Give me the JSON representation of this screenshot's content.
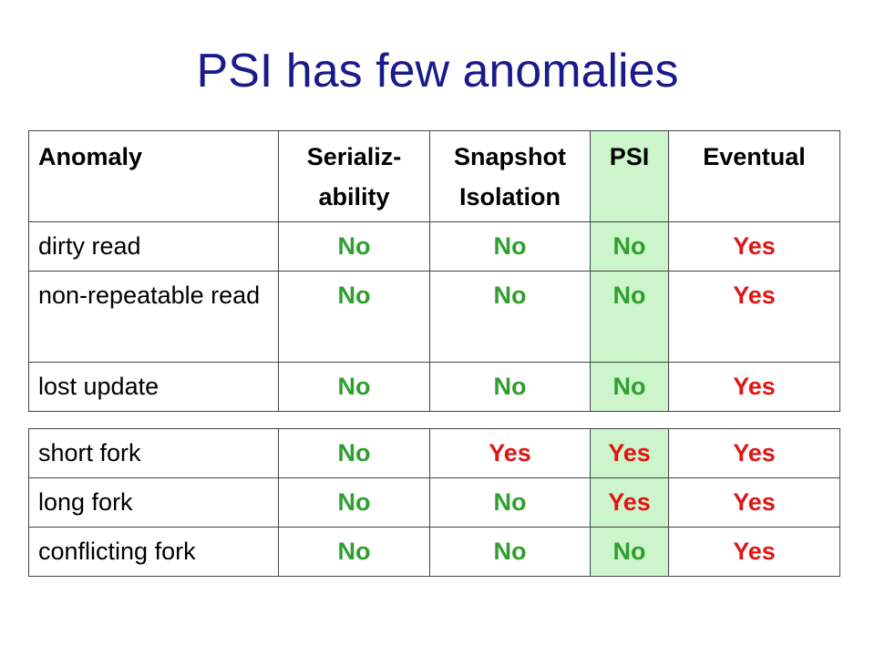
{
  "title": "PSI has few anomalies",
  "table_main": {
    "headers": [
      "Anomaly",
      "Serializ-ability",
      "Snapshot Isolation",
      "PSI",
      "Eventual"
    ],
    "header_lines": [
      [
        "Anomaly"
      ],
      [
        "Serializ-",
        "ability"
      ],
      [
        "Snapshot",
        "Isolation"
      ],
      [
        "PSI"
      ],
      [
        "Eventual"
      ]
    ],
    "rows": [
      {
        "anomaly": "dirty read",
        "serializability": "No",
        "snapshot": "No",
        "psi": "No",
        "eventual": "Yes"
      },
      {
        "anomaly": "non-repeatable read",
        "serializability": "No",
        "snapshot": "No",
        "psi": "No",
        "eventual": "Yes"
      },
      {
        "anomaly": "lost update",
        "serializability": "No",
        "snapshot": "No",
        "psi": "No",
        "eventual": "Yes"
      }
    ]
  },
  "table_fork": {
    "rows": [
      {
        "anomaly": "short fork",
        "serializability": "No",
        "snapshot": "Yes",
        "psi": "Yes",
        "eventual": "Yes"
      },
      {
        "anomaly": "long fork",
        "serializability": "No",
        "snapshot": "No",
        "psi": "Yes",
        "eventual": "Yes"
      },
      {
        "anomaly": "conflicting fork",
        "serializability": "No",
        "snapshot": "No",
        "psi": "No",
        "eventual": "Yes"
      }
    ]
  },
  "colors": {
    "title": "#1a1a8c",
    "no": "#2f9f2f",
    "yes": "#e01515",
    "psi_highlight": "#ccf5cc"
  }
}
